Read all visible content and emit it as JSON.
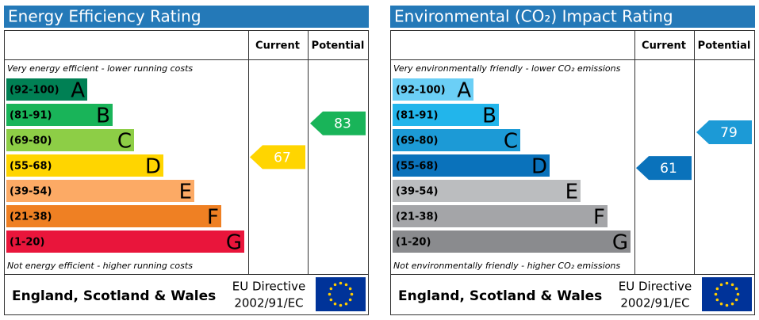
{
  "chart_data": [
    {
      "type": "epc",
      "title": "Energy Efficiency Rating",
      "title_color": "#2479b8",
      "columns": [
        "Current",
        "Potential"
      ],
      "top_note": "Very energy efficient - lower running costs",
      "bottom_note": "Not energy efficient - higher running costs",
      "bands": [
        {
          "range": "(92-100)",
          "letter": "A",
          "color": "#008054"
        },
        {
          "range": "(81-91)",
          "letter": "B",
          "color": "#19b459"
        },
        {
          "range": "(69-80)",
          "letter": "C",
          "color": "#8dce46"
        },
        {
          "range": "(55-68)",
          "letter": "D",
          "color": "#ffd500"
        },
        {
          "range": "(39-54)",
          "letter": "E",
          "color": "#fcaa65"
        },
        {
          "range": "(21-38)",
          "letter": "F",
          "color": "#ef8023"
        },
        {
          "range": "(1-20)",
          "letter": "G",
          "color": "#e9153b"
        }
      ],
      "current": 67,
      "potential": 83,
      "region": "England, Scotland & Wales",
      "directive": [
        "EU Directive",
        "2002/91/EC"
      ]
    },
    {
      "type": "epc",
      "title": "Environmental (CO₂) Impact Rating",
      "title_color": "#2479b8",
      "columns": [
        "Current",
        "Potential"
      ],
      "top_note": "Very environmentally friendly - lower CO₂ emissions",
      "bottom_note": "Not environmentally friendly - higher CO₂ emissions",
      "bands": [
        {
          "range": "(92-100)",
          "letter": "A",
          "color": "#6bcff6"
        },
        {
          "range": "(81-91)",
          "letter": "B",
          "color": "#22b5eb"
        },
        {
          "range": "(69-80)",
          "letter": "C",
          "color": "#1c9ad6"
        },
        {
          "range": "(55-68)",
          "letter": "D",
          "color": "#0a72bb"
        },
        {
          "range": "(39-54)",
          "letter": "E",
          "color": "#bbbdbf"
        },
        {
          "range": "(21-38)",
          "letter": "F",
          "color": "#a4a5a8"
        },
        {
          "range": "(1-20)",
          "letter": "G",
          "color": "#8a8b8e"
        }
      ],
      "current": 61,
      "potential": 79,
      "region": "England, Scotland & Wales",
      "directive": [
        "EU Directive",
        "2002/91/EC"
      ]
    }
  ]
}
